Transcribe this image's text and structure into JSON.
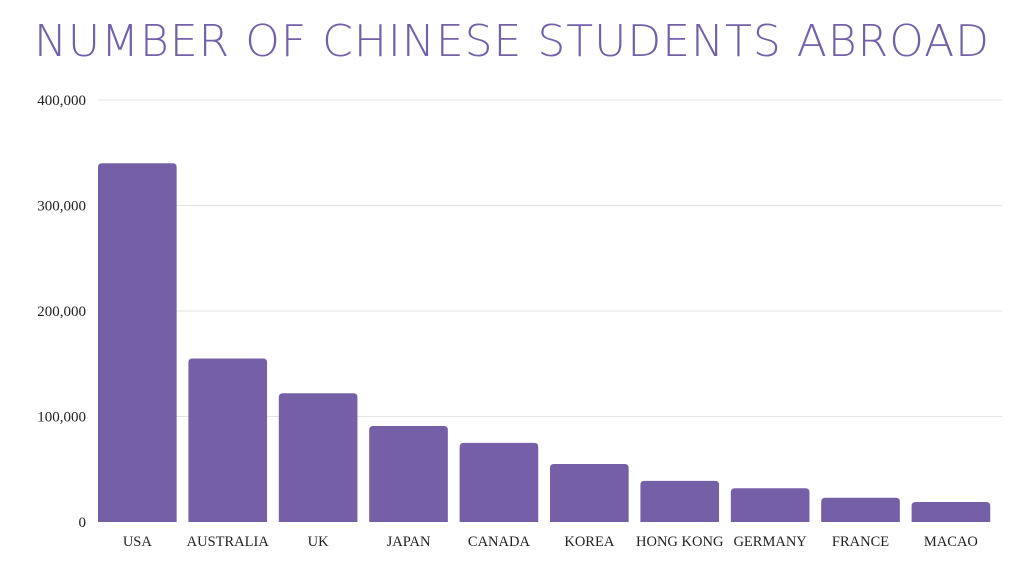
{
  "chart_data": {
    "type": "bar",
    "title": "NUMBER OF CHINESE STUDENTS ABROAD",
    "xlabel": "",
    "ylabel": "",
    "categories": [
      "USA",
      "AUSTRALIA",
      "UK",
      "JAPAN",
      "CANADA",
      "KOREA",
      "HONG KONG",
      "GERMANY",
      "FRANCE",
      "MACAO"
    ],
    "values": [
      340000,
      155000,
      122000,
      91000,
      75000,
      55000,
      39000,
      32000,
      23000,
      19000
    ],
    "ylim": [
      0,
      400000
    ],
    "yticks": [
      0,
      100000,
      200000,
      300000,
      400000
    ],
    "ytick_labels": [
      "0",
      "100,000",
      "200,000",
      "300,000",
      "400,000"
    ],
    "grid": true,
    "legend": "none",
    "colors": {
      "bar": "#7560a8",
      "title": "#7260a8",
      "grid": "#e3e3e3"
    }
  }
}
